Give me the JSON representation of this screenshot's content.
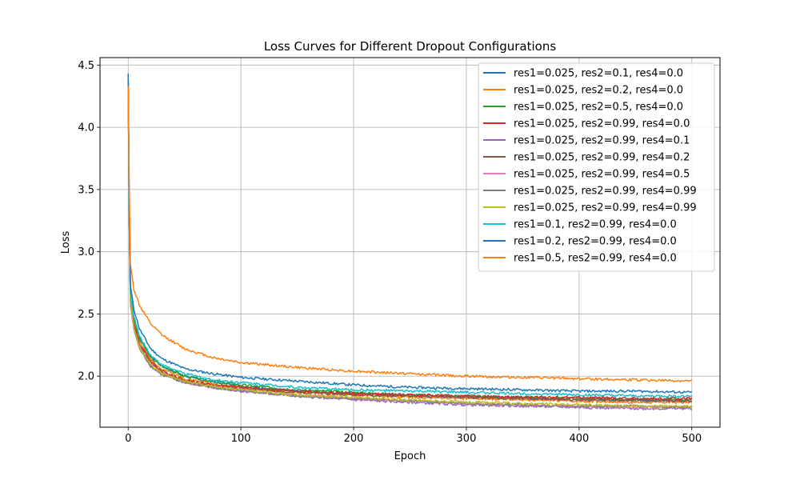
{
  "chart_data": {
    "type": "line",
    "title": "Loss Curves for Different Dropout Configurations",
    "xlabel": "Epoch",
    "ylabel": "Loss",
    "xlim": [
      -25,
      525
    ],
    "ylim": [
      1.59,
      4.56
    ],
    "xticks": [
      0,
      100,
      200,
      300,
      400,
      500
    ],
    "xtick_labels": [
      "0",
      "100",
      "200",
      "300",
      "400",
      "500"
    ],
    "yticks": [
      2.0,
      2.5,
      3.0,
      3.5,
      4.0,
      4.5
    ],
    "ytick_labels": [
      "2.0",
      "2.5",
      "3.0",
      "3.5",
      "4.0",
      "4.5"
    ],
    "grid": true,
    "legend_position": "top-right",
    "series": [
      {
        "name": "res1=0.025, res2=0.1, res4=0.0",
        "color": "#1f77b4",
        "x": [
          0,
          1,
          2,
          5,
          10,
          20,
          30,
          50,
          75,
          100,
          150,
          200,
          250,
          300,
          350,
          400,
          450,
          500
        ],
        "y": [
          4.43,
          3.3,
          2.68,
          2.47,
          2.31,
          2.16,
          2.08,
          2.0,
          1.95,
          1.92,
          1.88,
          1.86,
          1.84,
          1.83,
          1.82,
          1.81,
          1.8,
          1.8
        ]
      },
      {
        "name": "res1=0.025, res2=0.2, res4=0.0",
        "color": "#ff7f0e",
        "x": [
          0,
          1,
          2,
          5,
          10,
          20,
          30,
          50,
          75,
          100,
          150,
          200,
          250,
          300,
          350,
          400,
          450,
          500
        ],
        "y": [
          4.38,
          3.25,
          2.63,
          2.43,
          2.28,
          2.13,
          2.06,
          1.98,
          1.94,
          1.91,
          1.87,
          1.85,
          1.83,
          1.82,
          1.81,
          1.8,
          1.79,
          1.79
        ]
      },
      {
        "name": "res1=0.025, res2=0.5, res4=0.0",
        "color": "#2ca02c",
        "x": [
          0,
          1,
          2,
          5,
          10,
          20,
          30,
          50,
          75,
          100,
          150,
          200,
          250,
          300,
          350,
          400,
          450,
          500
        ],
        "y": [
          4.4,
          3.28,
          2.66,
          2.46,
          2.3,
          2.15,
          2.08,
          2.0,
          1.96,
          1.93,
          1.89,
          1.87,
          1.85,
          1.84,
          1.83,
          1.82,
          1.81,
          1.81
        ]
      },
      {
        "name": "res1=0.025, res2=0.99, res4=0.0",
        "color": "#d62728",
        "x": [
          0,
          1,
          2,
          5,
          10,
          20,
          30,
          50,
          75,
          100,
          150,
          200,
          250,
          300,
          350,
          400,
          450,
          500
        ],
        "y": [
          4.37,
          3.24,
          2.62,
          2.42,
          2.26,
          2.12,
          2.04,
          1.97,
          1.93,
          1.91,
          1.88,
          1.86,
          1.85,
          1.84,
          1.83,
          1.83,
          1.82,
          1.82
        ]
      },
      {
        "name": "res1=0.025, res2=0.99, res4=0.1",
        "color": "#9467bd",
        "x": [
          0,
          1,
          2,
          5,
          10,
          20,
          30,
          50,
          75,
          100,
          150,
          200,
          250,
          300,
          350,
          400,
          450,
          500
        ],
        "y": [
          4.35,
          3.2,
          2.58,
          2.39,
          2.23,
          2.09,
          2.01,
          1.95,
          1.91,
          1.88,
          1.84,
          1.81,
          1.79,
          1.77,
          1.76,
          1.75,
          1.74,
          1.74
        ]
      },
      {
        "name": "res1=0.025, res2=0.99, res4=0.2",
        "color": "#8c564b",
        "x": [
          0,
          1,
          2,
          5,
          10,
          20,
          30,
          50,
          75,
          100,
          150,
          200,
          250,
          300,
          350,
          400,
          450,
          500
        ],
        "y": [
          4.36,
          3.22,
          2.6,
          2.4,
          2.25,
          2.1,
          2.03,
          1.96,
          1.92,
          1.9,
          1.87,
          1.85,
          1.84,
          1.83,
          1.82,
          1.81,
          1.81,
          1.8
        ]
      },
      {
        "name": "res1=0.025, res2=0.99, res4=0.5",
        "color": "#e377c2",
        "x": [
          0,
          1,
          2,
          5,
          10,
          20,
          30,
          50,
          75,
          100,
          150,
          200,
          250,
          300,
          350,
          400,
          450,
          500
        ],
        "y": [
          4.34,
          3.21,
          2.59,
          2.39,
          2.24,
          2.09,
          2.02,
          1.95,
          1.91,
          1.89,
          1.85,
          1.82,
          1.8,
          1.78,
          1.77,
          1.76,
          1.75,
          1.75
        ]
      },
      {
        "name": "res1=0.025, res2=0.99, res4=0.99",
        "color": "#7f7f7f",
        "x": [
          0,
          1,
          2,
          5,
          10,
          20,
          30,
          50,
          75,
          100,
          150,
          200,
          250,
          300,
          350,
          400,
          450,
          500
        ],
        "y": [
          4.35,
          3.2,
          2.58,
          2.38,
          2.22,
          2.08,
          2.01,
          1.95,
          1.91,
          1.88,
          1.84,
          1.82,
          1.8,
          1.78,
          1.77,
          1.76,
          1.76,
          1.75
        ]
      },
      {
        "name": "res1=0.025, res2=0.99, res4=0.99",
        "color": "#bcbd22",
        "x": [
          0,
          1,
          2,
          5,
          10,
          20,
          30,
          50,
          75,
          100,
          150,
          200,
          250,
          300,
          350,
          400,
          450,
          500
        ],
        "y": [
          4.36,
          3.22,
          2.6,
          2.39,
          2.23,
          2.09,
          2.02,
          1.96,
          1.92,
          1.89,
          1.85,
          1.83,
          1.81,
          1.79,
          1.78,
          1.77,
          1.76,
          1.76
        ]
      },
      {
        "name": "res1=0.1, res2=0.99, res4=0.0",
        "color": "#17becf",
        "x": [
          0,
          1,
          2,
          5,
          10,
          20,
          30,
          50,
          75,
          100,
          150,
          200,
          250,
          300,
          350,
          400,
          450,
          500
        ],
        "y": [
          4.4,
          3.3,
          2.68,
          2.48,
          2.32,
          2.17,
          2.09,
          2.02,
          1.97,
          1.95,
          1.91,
          1.89,
          1.88,
          1.87,
          1.86,
          1.85,
          1.84,
          1.84
        ]
      },
      {
        "name": "res1=0.2, res2=0.99, res4=0.0",
        "color": "#1f77b4",
        "x": [
          0,
          1,
          2,
          5,
          10,
          20,
          30,
          50,
          75,
          100,
          150,
          200,
          250,
          300,
          350,
          400,
          450,
          500
        ],
        "y": [
          4.42,
          3.35,
          2.73,
          2.54,
          2.38,
          2.22,
          2.14,
          2.06,
          2.02,
          1.99,
          1.96,
          1.93,
          1.91,
          1.9,
          1.89,
          1.88,
          1.88,
          1.87
        ]
      },
      {
        "name": "res1=0.5, res2=0.99, res4=0.0",
        "color": "#ff7f0e",
        "x": [
          0,
          1,
          2,
          5,
          10,
          20,
          30,
          50,
          75,
          100,
          150,
          200,
          250,
          300,
          350,
          400,
          450,
          500
        ],
        "y": [
          4.33,
          3.5,
          2.9,
          2.7,
          2.57,
          2.42,
          2.33,
          2.22,
          2.15,
          2.11,
          2.07,
          2.04,
          2.02,
          2.0,
          1.99,
          1.98,
          1.97,
          1.96
        ]
      }
    ]
  }
}
